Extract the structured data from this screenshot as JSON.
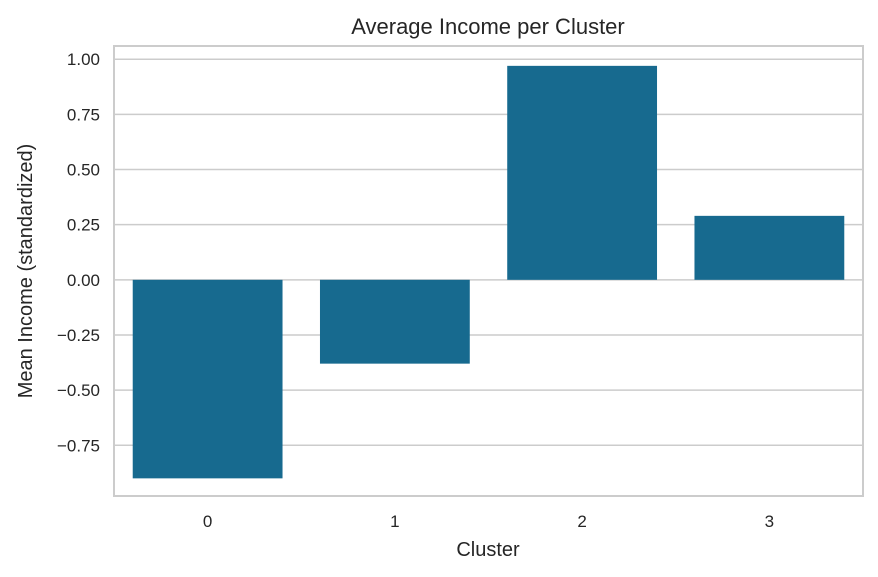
{
  "chart_data": {
    "type": "bar",
    "title": "Average Income per Cluster",
    "xlabel": "Cluster",
    "ylabel": "Mean Income (standardized)",
    "categories": [
      "0",
      "1",
      "2",
      "3"
    ],
    "values": [
      -0.9,
      -0.38,
      0.97,
      0.29
    ],
    "ylim": [
      -0.98,
      1.06
    ],
    "yticks": [
      1.0,
      0.75,
      0.5,
      0.25,
      0.0,
      -0.25,
      -0.5,
      -0.75
    ],
    "ytick_labels": [
      "1.00",
      "0.75",
      "0.50",
      "0.25",
      "0.00",
      "−0.25",
      "−0.50",
      "−0.75"
    ],
    "grid": "horizontal",
    "bar_color": "#176a8f",
    "grid_color": "#cccccc"
  }
}
